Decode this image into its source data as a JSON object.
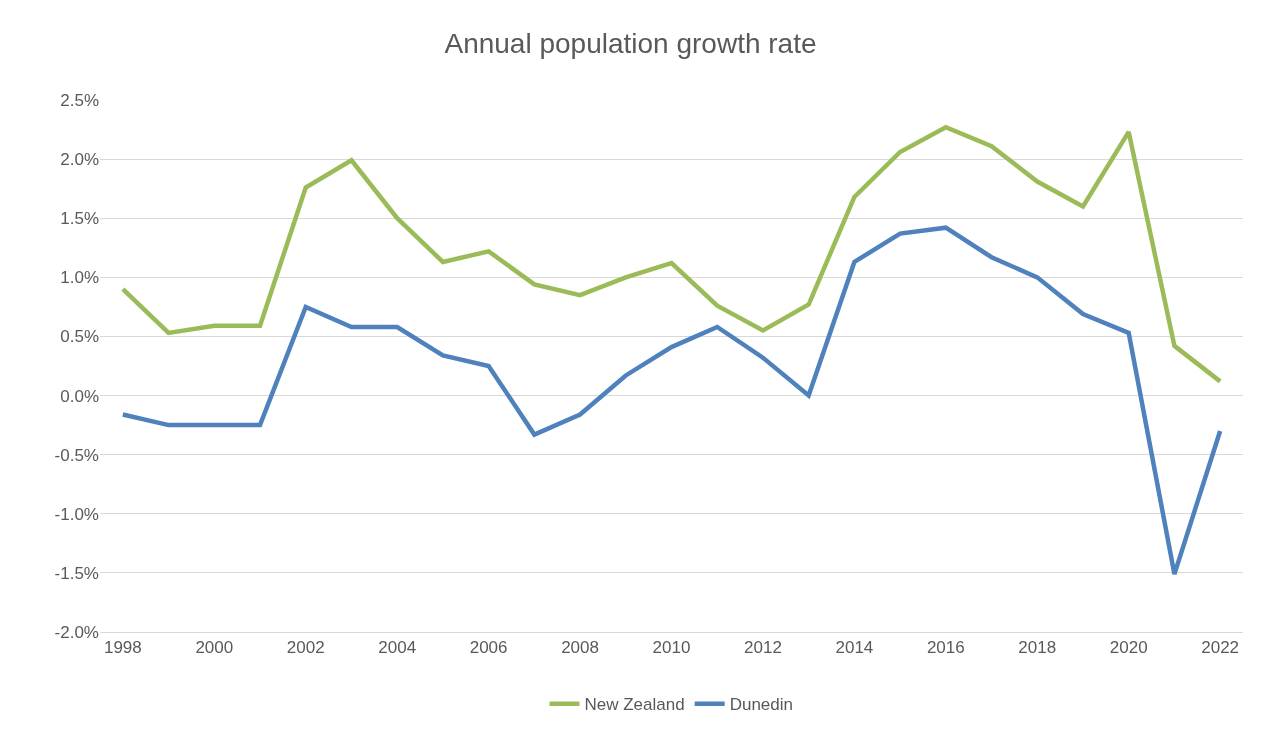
{
  "chart_data": {
    "type": "line",
    "title": "Annual population growth rate",
    "x": [
      1998,
      1999,
      2000,
      2001,
      2002,
      2003,
      2004,
      2005,
      2006,
      2007,
      2008,
      2009,
      2010,
      2011,
      2012,
      2013,
      2014,
      2015,
      2016,
      2017,
      2018,
      2019,
      2020,
      2021,
      2022
    ],
    "series": [
      {
        "name": "New Zealand",
        "color": "#9bbb59",
        "values": [
          0.9,
          0.53,
          0.59,
          0.59,
          1.76,
          1.99,
          1.5,
          1.13,
          1.22,
          0.94,
          0.85,
          1.0,
          1.12,
          0.76,
          0.55,
          0.77,
          1.68,
          2.06,
          2.27,
          2.11,
          1.81,
          1.6,
          2.23,
          0.42,
          0.12
        ]
      },
      {
        "name": "Dunedin",
        "color": "#4f81bd",
        "values": [
          -0.16,
          -0.25,
          -0.25,
          -0.25,
          0.75,
          0.58,
          0.58,
          0.34,
          0.25,
          -0.33,
          -0.16,
          0.17,
          0.41,
          0.58,
          0.32,
          0.0,
          1.13,
          1.37,
          1.42,
          1.17,
          1.0,
          0.69,
          0.53,
          -1.51,
          -0.3
        ]
      }
    ],
    "xlim": [
      1997.5,
      2022.5
    ],
    "xticks": [
      1998,
      2000,
      2002,
      2004,
      2006,
      2008,
      2010,
      2012,
      2014,
      2016,
      2018,
      2020,
      2022
    ],
    "ylim": [
      -2.0,
      2.5
    ],
    "yticks": [
      {
        "value": -2.0,
        "label": "-2.0%"
      },
      {
        "value": -1.5,
        "label": "-1.5%"
      },
      {
        "value": -1.0,
        "label": "-1.0%"
      },
      {
        "value": -0.5,
        "label": "-0.5%"
      },
      {
        "value": 0.0,
        "label": "0.0%"
      },
      {
        "value": 0.5,
        "label": "0.5%"
      },
      {
        "value": 1.0,
        "label": "1.0%"
      },
      {
        "value": 1.5,
        "label": "1.5%"
      },
      {
        "value": 2.0,
        "label": "2.0%"
      },
      {
        "value": 2.5,
        "label": "2.5%"
      }
    ],
    "grid": "y",
    "legend": "bottom",
    "marker": "none",
    "line_style": "solid"
  }
}
